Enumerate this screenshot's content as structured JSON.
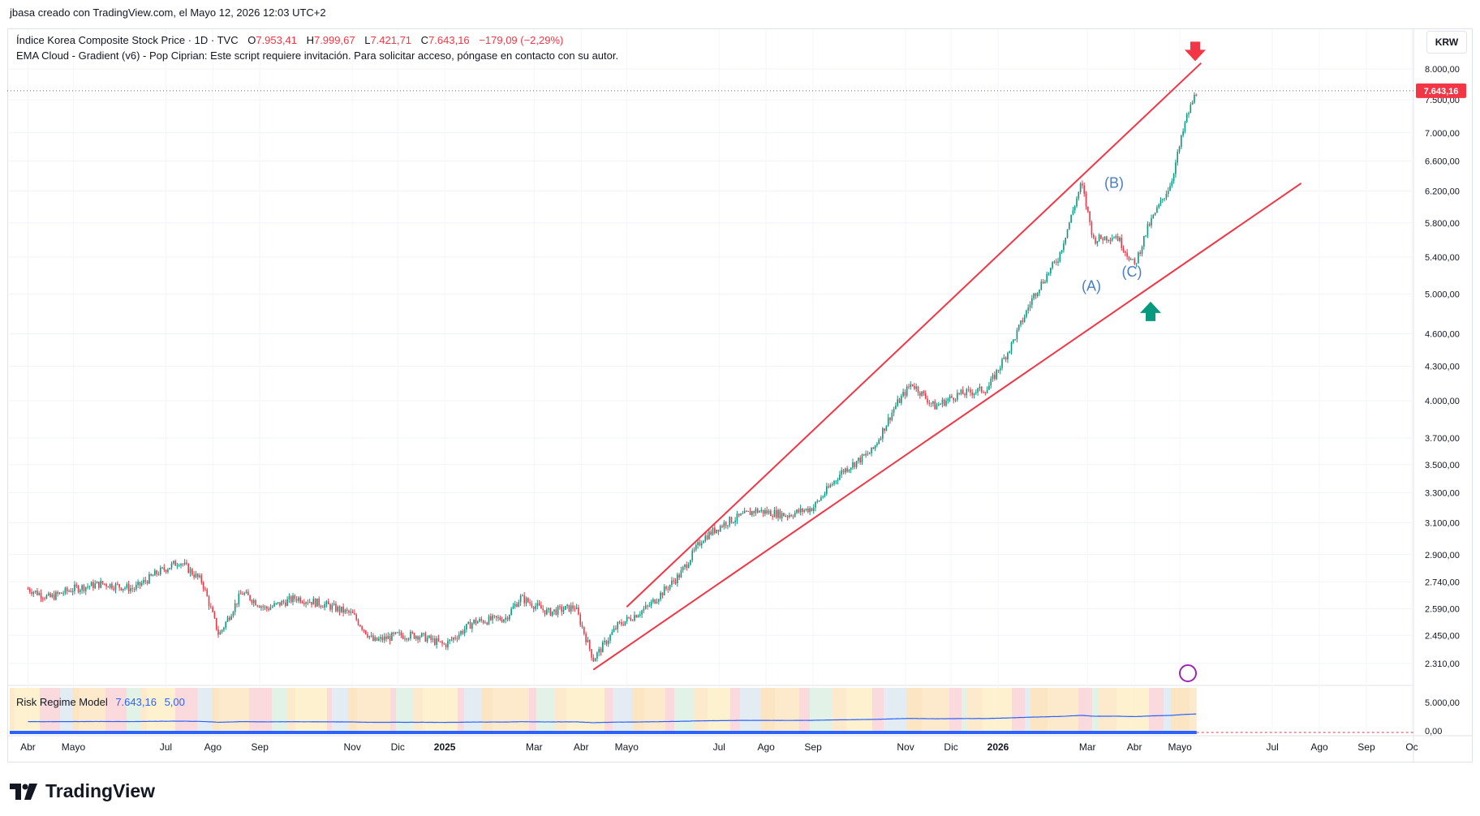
{
  "header": {
    "text": "jbasa creado con TradingView.com, el Mayo 12, 2026 12:03 UTC+2"
  },
  "legend": {
    "symbol": "Índice Korea Composite Stock Price · 1D · TVC",
    "open_label": "O",
    "open": "7.953,41",
    "high_label": "H",
    "high": "7.999,67",
    "low_label": "L",
    "low": "7.421,71",
    "close_label": "C",
    "close": "7.643,16",
    "change": "−179,09 (−2,29%)",
    "indicator": "EMA Cloud - Gradient (v6) - Pop Ciprian: Este script requiere invitación. Para solicitar acceso, póngase en contacto con su autor."
  },
  "currency": "KRW",
  "current_price_tag": "7.643,16",
  "pane": {
    "name": "Risk Regime Model",
    "value1": "7.643,16",
    "value2": "5,00",
    "axis_labels": [
      "5.000,00",
      "0,00"
    ]
  },
  "brand": "TradingView",
  "colors": {
    "up": "#089981",
    "down": "#f23645",
    "trendline": "#f23645",
    "wave_label": "#4a7fc1",
    "pane_line": "#2962ff",
    "arrow_down": "#f23645",
    "arrow_up": "#089981"
  },
  "chart_data": {
    "type": "candlestick",
    "title": "Índice Korea Composite Stock Price · 1D · TVC",
    "y_scale": "log",
    "y_ticks": [
      "8.000,00",
      "7.500,00",
      "7.000,00",
      "6.600,00",
      "6.200,00",
      "5.800,00",
      "5.400,00",
      "5.000,00",
      "4.600,00",
      "4.300,00",
      "4.000,00",
      "3.700,00",
      "3.500,00",
      "3.300,00",
      "3.100,00",
      "2.900,00",
      "2.740,00",
      "2.590,00",
      "2.450,00",
      "2.310,00"
    ],
    "x_ticks": [
      "Abr",
      "Mayo",
      "Jul",
      "Ago",
      "Sep",
      "Nov",
      "Dic",
      "2025",
      "Mar",
      "Abr",
      "Mayo",
      "Jul",
      "Ago",
      "Sep",
      "Nov",
      "Dic",
      "2026",
      "Mar",
      "Abr",
      "Mayo",
      "Jul",
      "Ago",
      "Sep",
      "Oc"
    ],
    "x_ticks_bold": [
      "2025",
      "2026"
    ],
    "series_close": [
      [
        "2024-04-01",
        2700
      ],
      [
        "2024-04-15",
        2650
      ],
      [
        "2024-05-01",
        2700
      ],
      [
        "2024-05-20",
        2730
      ],
      [
        "2024-06-10",
        2700
      ],
      [
        "2024-06-25",
        2790
      ],
      [
        "2024-07-10",
        2860
      ],
      [
        "2024-07-25",
        2740
      ],
      [
        "2024-08-05",
        2450
      ],
      [
        "2024-08-20",
        2680
      ],
      [
        "2024-09-05",
        2590
      ],
      [
        "2024-09-25",
        2650
      ],
      [
        "2024-10-15",
        2610
      ],
      [
        "2024-11-01",
        2560
      ],
      [
        "2024-11-15",
        2420
      ],
      [
        "2024-12-01",
        2450
      ],
      [
        "2024-12-15",
        2450
      ],
      [
        "2025-01-01",
        2400
      ],
      [
        "2025-01-20",
        2520
      ],
      [
        "2025-02-10",
        2540
      ],
      [
        "2025-02-20",
        2650
      ],
      [
        "2025-03-10",
        2570
      ],
      [
        "2025-03-28",
        2600
      ],
      [
        "2025-04-09",
        2330
      ],
      [
        "2025-04-25",
        2500
      ],
      [
        "2025-05-15",
        2600
      ],
      [
        "2025-06-05",
        2780
      ],
      [
        "2025-06-20",
        3000
      ],
      [
        "2025-07-05",
        3100
      ],
      [
        "2025-07-25",
        3180
      ],
      [
        "2025-08-15",
        3150
      ],
      [
        "2025-09-01",
        3200
      ],
      [
        "2025-09-20",
        3450
      ],
      [
        "2025-10-10",
        3600
      ],
      [
        "2025-10-25",
        3950
      ],
      [
        "2025-11-05",
        4150
      ],
      [
        "2025-11-20",
        3950
      ],
      [
        "2025-12-05",
        4050
      ],
      [
        "2025-12-25",
        4100
      ],
      [
        "2026-01-10",
        4500
      ],
      [
        "2026-01-25",
        5000
      ],
      [
        "2026-02-10",
        5400
      ],
      [
        "2026-02-25",
        6300
      ],
      [
        "2026-03-05",
        5600
      ],
      [
        "2026-03-20",
        5650
      ],
      [
        "2026-04-01",
        5300
      ],
      [
        "2026-04-10",
        5750
      ],
      [
        "2026-04-25",
        6300
      ],
      [
        "2026-05-05",
        7200
      ],
      [
        "2026-05-12",
        7643.16
      ]
    ],
    "trendlines": [
      {
        "from": [
          "2025-05-01",
          2600
        ],
        "to": [
          "2026-05-15",
          8100
        ]
      },
      {
        "from": [
          "2025-04-09",
          2280
        ],
        "to": [
          "2026-07-20",
          6300
        ]
      }
    ],
    "annotations": [
      "(A)",
      "(B)",
      "(C)"
    ],
    "ylabel": "",
    "xlabel": ""
  }
}
